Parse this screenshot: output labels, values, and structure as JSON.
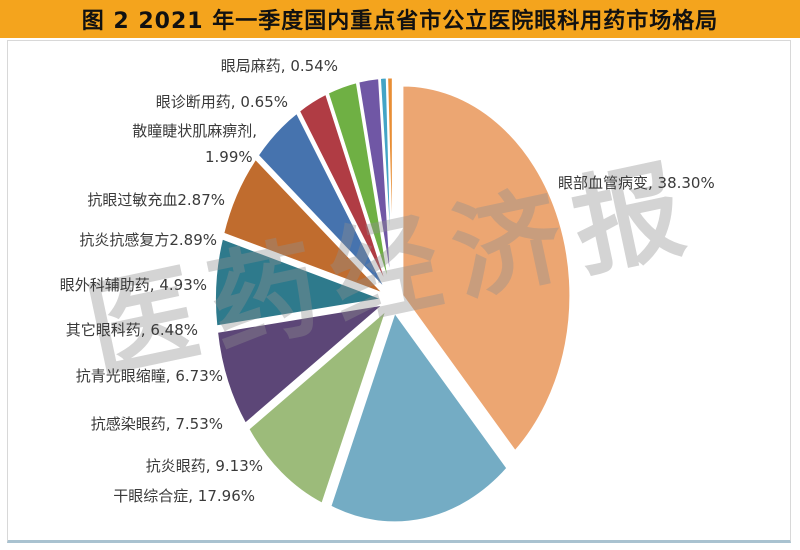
{
  "title": "图 2   2021 年一季度国内重点省市公立医院眼科用药市场格局",
  "watermark": "医药经济报",
  "colors": {
    "title_bar_bg": "#F4A41D",
    "title_text": "#111111",
    "frame_border": "#D8D8D8",
    "bottom_rule": "#A9C2D0",
    "label_text": "#3A3A3A",
    "watermark_gray": "#8F8F8F",
    "slice_stroke": "#FFFFFF"
  },
  "chart_data": {
    "type": "pie",
    "title": "2021年一季度国内重点省市公立医院眼科用药市场格局",
    "unit": "percent",
    "start_angle": "12-oclock",
    "direction": "clockwise",
    "exploded": true,
    "legend": "none (outside data labels)",
    "slices": [
      {
        "name": "眼部血管病变",
        "value": 38.3,
        "display": "眼部血管病变, 38.30%",
        "color": "#ECA672"
      },
      {
        "name": "干眼综合症",
        "value": 17.96,
        "display": "干眼综合症, 17.96%",
        "color": "#74ACC4"
      },
      {
        "name": "抗炎眼药",
        "value": 9.13,
        "display": "抗炎眼药, 9.13%",
        "color": "#9CBB7A"
      },
      {
        "name": "抗感染眼药",
        "value": 7.53,
        "display": "抗感染眼药, 7.53%",
        "color": "#5C4677"
      },
      {
        "name": "抗青光眼缩瞳",
        "value": 6.73,
        "display": "抗青光眼缩瞳, 6.73%",
        "color": "#2E7A8C"
      },
      {
        "name": "其它眼科药",
        "value": 6.48,
        "display": "其它眼科药, 6.48%",
        "color": "#C06C2E"
      },
      {
        "name": "眼外科辅助药",
        "value": 4.93,
        "display": "眼外科辅助药, 4.93%",
        "color": "#4673AE"
      },
      {
        "name": "抗炎抗感复方",
        "value": 2.89,
        "display": "抗炎抗感复方2.89%",
        "color": "#B03C44"
      },
      {
        "name": "抗眼过敏充血",
        "value": 2.87,
        "display": "抗眼过敏充血2.87%",
        "color": "#6FB044"
      },
      {
        "name": "散瞳睫状肌麻痹剂",
        "value": 1.99,
        "display": "散瞳睫状肌麻痹剂,",
        "display2": "1.99%",
        "color": "#7057A5"
      },
      {
        "name": "眼诊断用药",
        "value": 0.65,
        "display": "眼诊断用药, 0.65%",
        "color": "#43A4C6"
      },
      {
        "name": "眼局麻药",
        "value": 0.54,
        "display": "眼局麻药, 0.54%",
        "color": "#E88E35"
      }
    ]
  }
}
